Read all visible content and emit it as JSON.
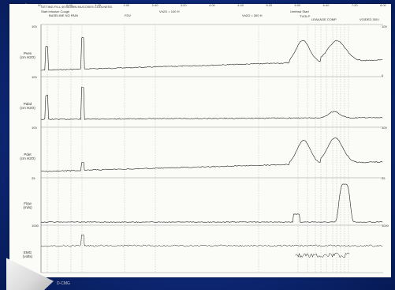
{
  "header": {
    "left": "SITTING FILL 40 ML/MIN  MUCOSES COOLNESS",
    "left2": "Start infusion   Cough",
    "left3": "BASELINE  NO PAIN",
    "mid1": "FDV",
    "mid2": "Vh2O = 100 H",
    "mid3": "Vh2O = 300 H",
    "right1": "Urethral Start",
    "right2": "TVOLP",
    "right3": "LEAKAGE  COMP",
    "right4": "VOIDED 300 I"
  },
  "time_ticks": [
    "00",
    "0:40",
    "1:20",
    "2:00",
    "2:40",
    "3:20",
    "4:00",
    "4:40",
    "5:20",
    "6:00",
    "6:40",
    "7:20",
    "8:00"
  ],
  "channels": [
    {
      "label": "Pves\n(cm H2O)",
      "max": "100",
      "min": "0"
    },
    {
      "label": "Pabd\n(cm H2O)",
      "max": "100",
      "min": "0"
    },
    {
      "label": "Pdet\n(cm H2O)",
      "max": "100",
      "min": "0"
    },
    {
      "label": "Flow\n(ml/s)",
      "max": "25",
      "min": "0"
    },
    {
      "label": "EMG\n(volts)",
      "max": "1000",
      "min": "0"
    }
  ],
  "caption": "D-CMG",
  "colors": {
    "background": "#0e2a7a",
    "paper": "#fbfbf8",
    "trace": "#222222"
  }
}
